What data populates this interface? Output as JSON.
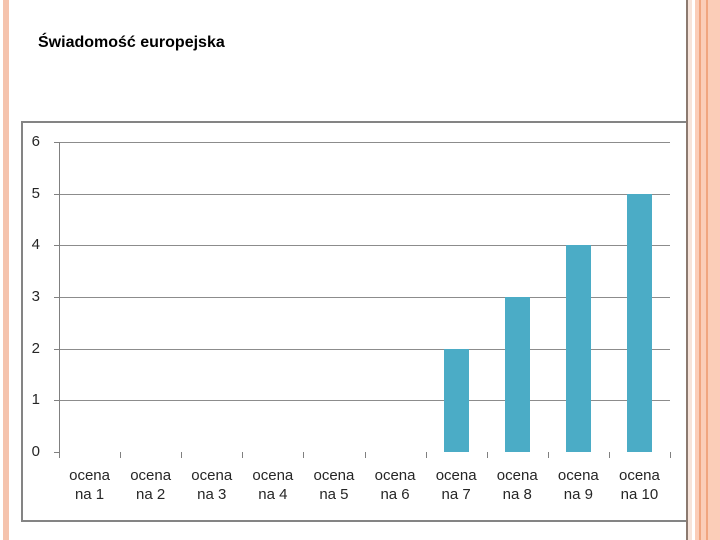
{
  "slide": {
    "title": "Świadomość europejska"
  },
  "chart_data": {
    "type": "bar",
    "categories": [
      "ocena na 1",
      "ocena na 2",
      "ocena na 3",
      "ocena na 4",
      "ocena na 5",
      "ocena na 6",
      "ocena na 7",
      "ocena na 8",
      "ocena na 9",
      "ocena na 10"
    ],
    "values": [
      0,
      0,
      0,
      0,
      0,
      0,
      2,
      3,
      4,
      5
    ],
    "title": "",
    "xlabel": "",
    "ylabel": "",
    "ylim": [
      0,
      6
    ],
    "yticks": [
      0,
      1,
      2,
      3,
      4,
      5,
      6
    ],
    "grid": true,
    "legend": "none",
    "bar_color": "#4BACC6"
  },
  "colors": {
    "bar": "#4BACC6",
    "grid": "#8C8C8C",
    "axis": "#808080",
    "chart_border": "#848484",
    "label_text": "#262626",
    "title_text": "#000000",
    "background": "#FFFFFF",
    "stripe_salmon_left": "#F5C3AD",
    "stripe_salmon_right": "#FBCDB8",
    "stripe_light_pink": "#F7E4DA",
    "stripe_orange": "#F1A57F",
    "stripe_brown": "#8C7A70"
  }
}
